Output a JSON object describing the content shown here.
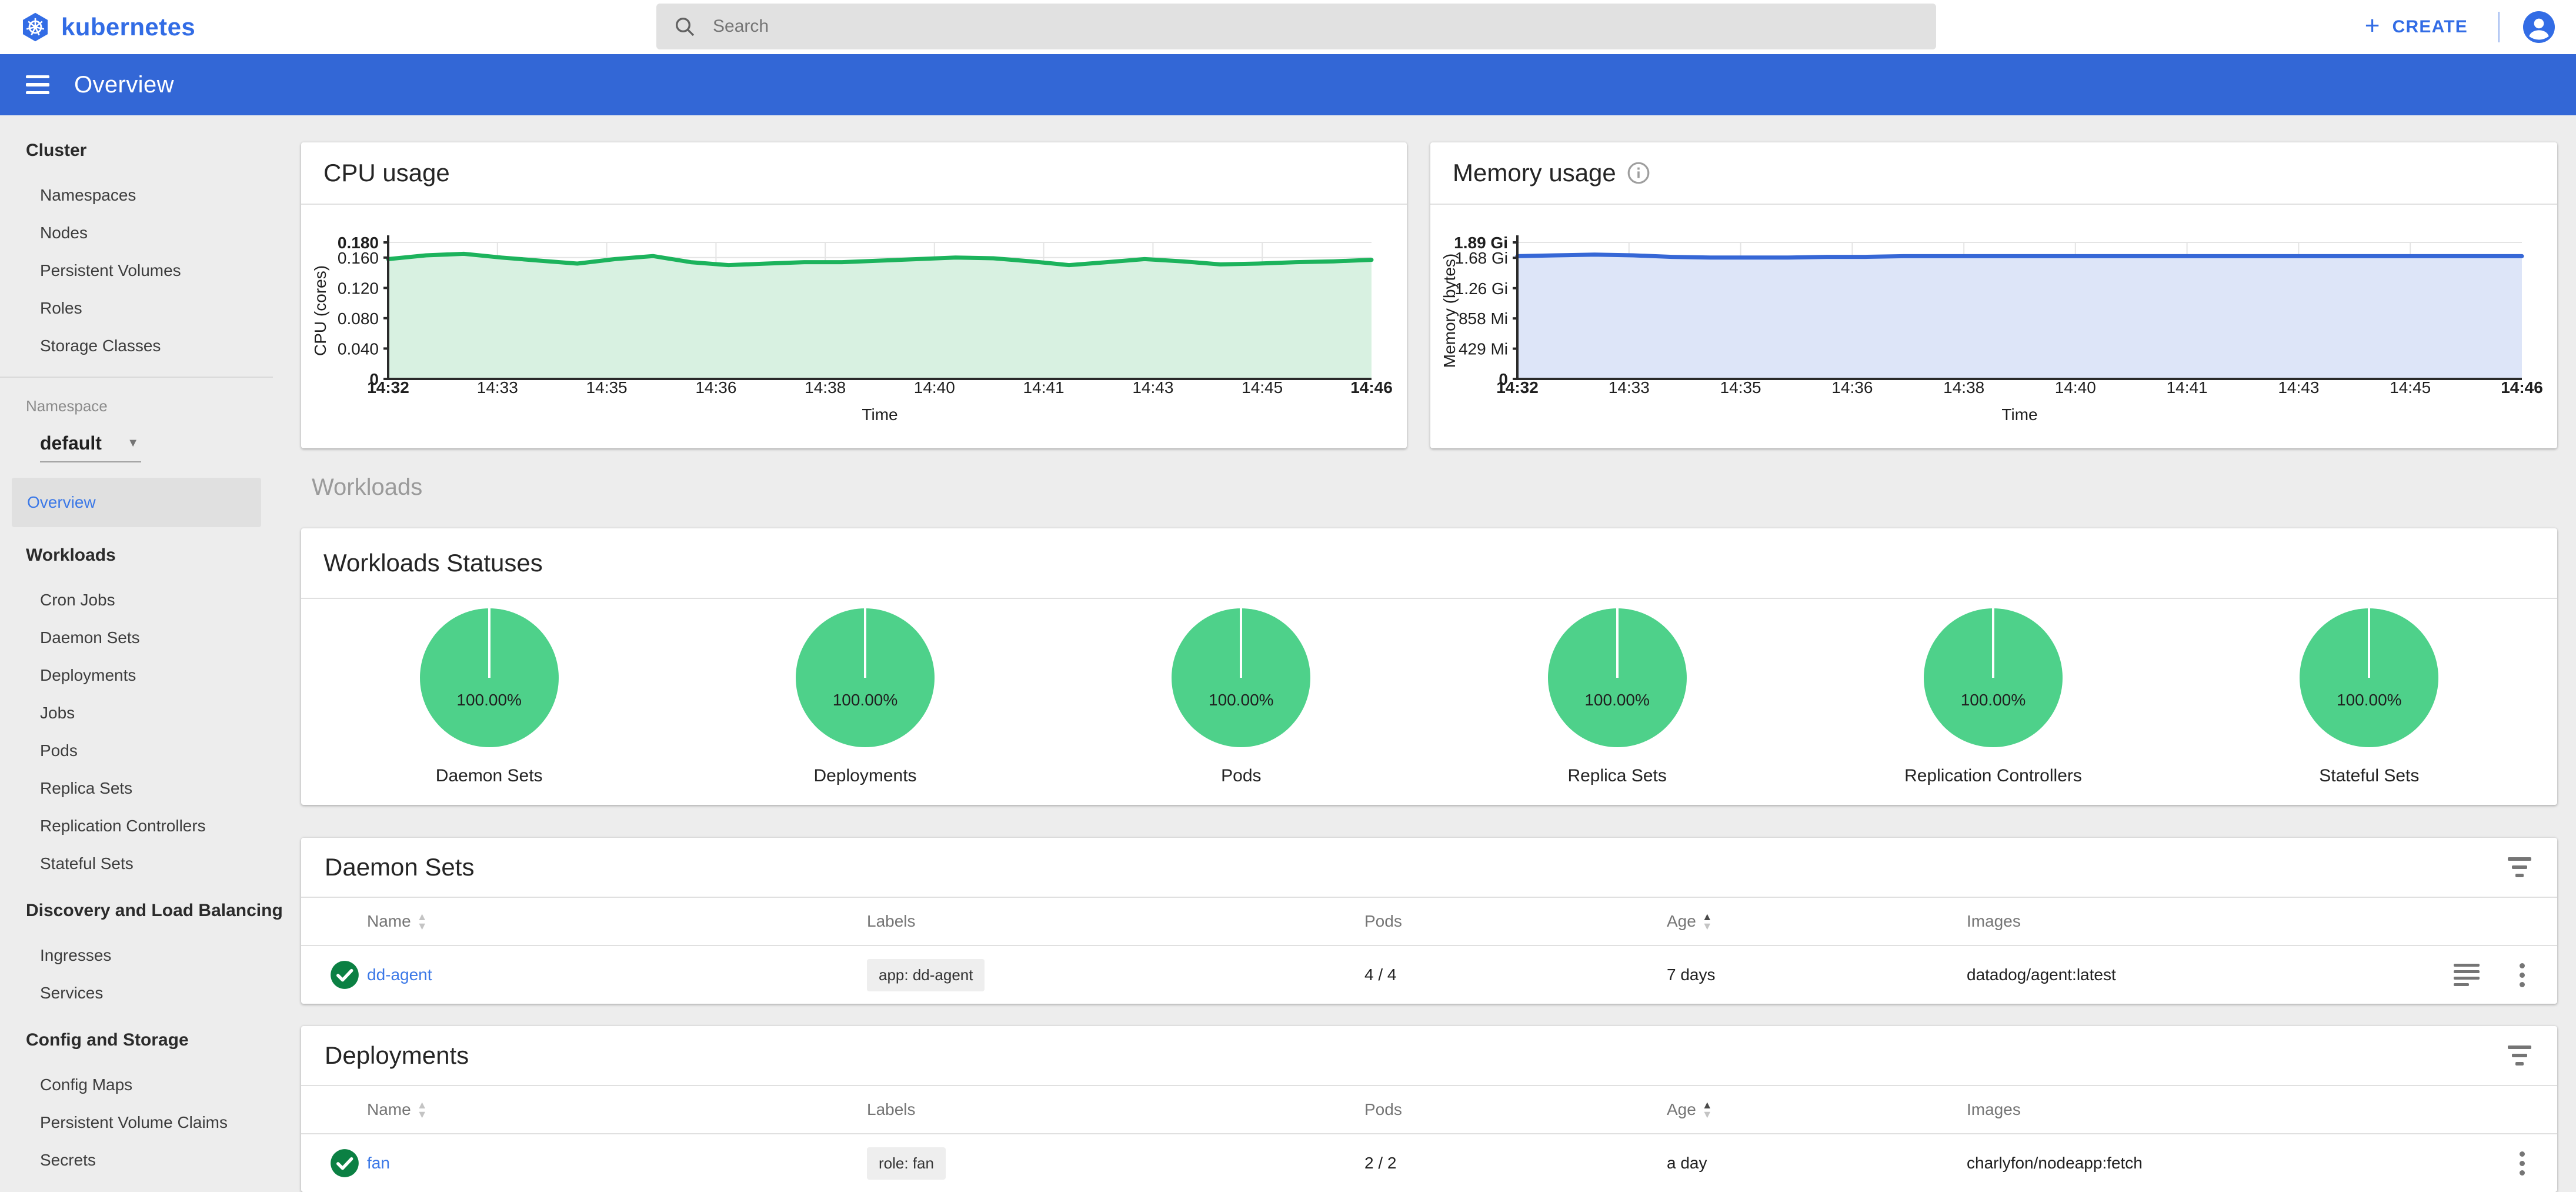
{
  "app": {
    "brand": "kubernetes",
    "search_placeholder": "Search",
    "plus_glyph": "+",
    "create_label": "CREATE",
    "toolbar_title": "Overview"
  },
  "sidebar": {
    "cluster": {
      "title": "Cluster",
      "items": [
        "Namespaces",
        "Nodes",
        "Persistent Volumes",
        "Roles",
        "Storage Classes"
      ]
    },
    "namespace": {
      "label": "Namespace",
      "value": "default"
    },
    "overview_label": "Overview",
    "sections": [
      {
        "title": "Workloads",
        "items": [
          "Cron Jobs",
          "Daemon Sets",
          "Deployments",
          "Jobs",
          "Pods",
          "Replica Sets",
          "Replication Controllers",
          "Stateful Sets"
        ]
      },
      {
        "title": "Discovery and Load Balancing",
        "items": [
          "Ingresses",
          "Services"
        ]
      },
      {
        "title": "Config and Storage",
        "items": [
          "Config Maps",
          "Persistent Volume Claims",
          "Secrets"
        ]
      }
    ]
  },
  "main": {
    "workloads_group_label": "Workloads",
    "statuses": {
      "title": "Workloads Statuses",
      "items": [
        {
          "label": "Daemon Sets",
          "value": "100.00%"
        },
        {
          "label": "Deployments",
          "value": "100.00%"
        },
        {
          "label": "Pods",
          "value": "100.00%"
        },
        {
          "label": "Replica Sets",
          "value": "100.00%"
        },
        {
          "label": "Replication Controllers",
          "value": "100.00%"
        },
        {
          "label": "Stateful Sets",
          "value": "100.00%"
        }
      ]
    }
  },
  "chart_data": [
    {
      "type": "area",
      "title": "CPU usage",
      "ylabel": "CPU (cores)",
      "xlabel": "Time",
      "ymax": 0.18,
      "yticks": [
        {
          "v": 0,
          "label": "0",
          "bold": true
        },
        {
          "v": 0.04,
          "label": "0.040"
        },
        {
          "v": 0.08,
          "label": "0.080"
        },
        {
          "v": 0.12,
          "label": "0.120"
        },
        {
          "v": 0.16,
          "label": "0.160"
        },
        {
          "v": 0.18,
          "label": "0.180",
          "bold": true
        }
      ],
      "xticks": [
        {
          "label": "14:32",
          "bold": true
        },
        {
          "label": "14:33"
        },
        {
          "label": "14:35"
        },
        {
          "label": "14:36"
        },
        {
          "label": "14:38"
        },
        {
          "label": "14:40"
        },
        {
          "label": "14:41"
        },
        {
          "label": "14:43"
        },
        {
          "label": "14:45"
        },
        {
          "label": "14:46",
          "bold": true
        }
      ],
      "values": [
        0.158,
        0.163,
        0.165,
        0.16,
        0.156,
        0.152,
        0.158,
        0.162,
        0.154,
        0.15,
        0.152,
        0.154,
        0.154,
        0.156,
        0.158,
        0.16,
        0.159,
        0.155,
        0.15,
        0.154,
        0.158,
        0.155,
        0.151,
        0.152,
        0.154,
        0.155,
        0.157
      ],
      "line_color": "#1cb35c",
      "fill_color": "#d8f1e1",
      "has_info_icon": false
    },
    {
      "type": "area",
      "title": "Memory usage",
      "ylabel": "Memory (bytes)",
      "xlabel": "Time",
      "ymax": 1.89,
      "yticks": [
        {
          "v": 0,
          "label": "0",
          "bold": true
        },
        {
          "v": 0.419,
          "label": "429 Mi"
        },
        {
          "v": 0.838,
          "label": "858 Mi"
        },
        {
          "v": 1.257,
          "label": "1.26 Gi"
        },
        {
          "v": 1.676,
          "label": "1.68 Gi"
        },
        {
          "v": 1.89,
          "label": "1.89 Gi",
          "bold": true
        }
      ],
      "xticks": [
        {
          "label": "14:32",
          "bold": true
        },
        {
          "label": "14:33"
        },
        {
          "label": "14:35"
        },
        {
          "label": "14:36"
        },
        {
          "label": "14:38"
        },
        {
          "label": "14:40"
        },
        {
          "label": "14:41"
        },
        {
          "label": "14:43"
        },
        {
          "label": "14:45"
        },
        {
          "label": "14:46",
          "bold": true
        }
      ],
      "values": [
        1.7,
        1.71,
        1.72,
        1.71,
        1.69,
        1.68,
        1.68,
        1.68,
        1.69,
        1.69,
        1.7,
        1.7,
        1.7,
        1.7,
        1.7,
        1.7,
        1.7,
        1.7,
        1.7,
        1.7,
        1.7,
        1.7,
        1.7,
        1.7,
        1.7,
        1.7,
        1.7
      ],
      "line_color": "#3667d6",
      "fill_color": "#dde5f8",
      "has_info_icon": true
    }
  ],
  "tables": [
    {
      "title": "Daemon Sets",
      "columns": [
        {
          "label": "Name",
          "sort": "inactive"
        },
        {
          "label": "Labels",
          "sort": "none"
        },
        {
          "label": "Pods",
          "sort": "none"
        },
        {
          "label": "Age",
          "sort": "asc"
        },
        {
          "label": "Images",
          "sort": "none"
        }
      ],
      "rows": [
        {
          "status": "ok",
          "name": "dd-agent",
          "label_chip": "app: dd-agent",
          "pods": "4 / 4",
          "age": "7 days",
          "images": "datadog/agent:latest",
          "has_logs_icon": true
        }
      ]
    },
    {
      "title": "Deployments",
      "columns": [
        {
          "label": "Name",
          "sort": "inactive"
        },
        {
          "label": "Labels",
          "sort": "none"
        },
        {
          "label": "Pods",
          "sort": "none"
        },
        {
          "label": "Age",
          "sort": "asc"
        },
        {
          "label": "Images",
          "sort": "none"
        }
      ],
      "rows": [
        {
          "status": "ok",
          "name": "fan",
          "label_chip": "role: fan",
          "pods": "2 / 2",
          "age": "a day",
          "images": "charlyfon/nodeapp:fetch",
          "has_logs_icon": false
        }
      ]
    }
  ],
  "colors": {
    "brand_blue": "#326ce5",
    "toolbar_blue": "#3367d6",
    "link_blue": "#3b78e7",
    "status_ok_green": "#0b8043",
    "pie_green": "#4ed18a",
    "cpu_line_green": "#1cb35c",
    "memory_line_blue": "#3667d6"
  }
}
